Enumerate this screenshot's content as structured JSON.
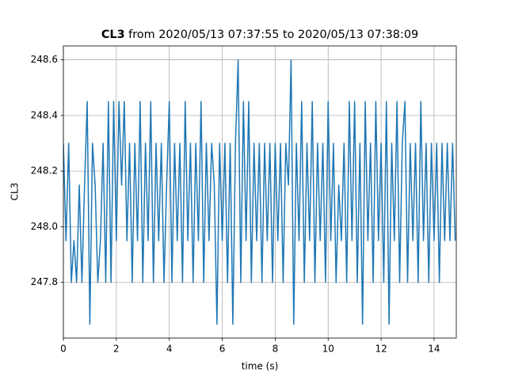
{
  "chart_data": {
    "type": "line",
    "title": [
      "CL3",
      "from 2020/05/13 07:37:55 to 2020/05/13 07:38:09"
    ],
    "xlabel": "time (s)",
    "ylabel": "CL3",
    "xlim": [
      0,
      14.84
    ],
    "ylim": [
      247.6,
      248.65
    ],
    "xticks": [
      0,
      2,
      4,
      6,
      8,
      10,
      12,
      14
    ],
    "yticks": [
      247.8,
      {
        "value": 248.0,
        "label": "248.0"
      },
      248.2,
      248.4,
      248.6
    ],
    "grid": true,
    "color": "#1f77b4",
    "x": [
      0,
      0.1,
      0.2,
      0.3,
      0.4,
      0.5,
      0.6,
      0.7,
      0.8,
      0.9,
      1,
      1.1,
      1.2,
      1.3,
      1.4,
      1.5,
      1.6,
      1.7,
      1.8,
      1.9,
      2,
      2.1,
      2.2,
      2.3,
      2.4,
      2.5,
      2.6,
      2.7,
      2.8,
      2.9,
      3,
      3.1,
      3.2,
      3.3,
      3.4,
      3.5,
      3.6,
      3.7,
      3.8,
      3.9,
      4,
      4.1,
      4.2,
      4.3,
      4.4,
      4.5,
      4.6,
      4.7,
      4.8,
      4.9,
      5,
      5.1,
      5.2,
      5.3,
      5.4,
      5.5,
      5.6,
      5.7,
      5.8,
      5.9,
      6,
      6.1,
      6.2,
      6.3,
      6.4,
      6.5,
      6.6,
      6.7,
      6.8,
      6.9,
      7,
      7.1,
      7.2,
      7.3,
      7.4,
      7.5,
      7.6,
      7.7,
      7.8,
      7.9,
      8,
      8.1,
      8.2,
      8.3,
      8.4,
      8.5,
      8.6,
      8.7,
      8.8,
      8.9,
      9,
      9.1,
      9.2,
      9.3,
      9.4,
      9.5,
      9.6,
      9.7,
      9.8,
      9.9,
      10,
      10.1,
      10.2,
      10.3,
      10.4,
      10.5,
      10.6,
      10.7,
      10.8,
      10.9,
      11,
      11.1,
      11.2,
      11.3,
      11.4,
      11.5,
      11.6,
      11.7,
      11.8,
      11.9,
      12,
      12.1,
      12.2,
      12.3,
      12.4,
      12.5,
      12.6,
      12.7,
      12.8,
      12.9,
      13,
      13.1,
      13.2,
      13.3,
      13.4,
      13.5,
      13.6,
      13.7,
      13.8,
      13.9,
      14,
      14.1,
      14.2,
      14.3,
      14.4,
      14.5,
      14.6,
      14.7,
      14.8
    ],
    "values": [
      248.3,
      247.95,
      248.3,
      247.8,
      247.95,
      247.8,
      248.15,
      247.8,
      248.15,
      248.45,
      247.65,
      248.3,
      248.15,
      247.8,
      247.95,
      248.3,
      247.8,
      248.45,
      247.8,
      248.45,
      247.95,
      248.45,
      248.15,
      248.45,
      247.95,
      248.3,
      247.8,
      248.3,
      247.95,
      248.45,
      247.8,
      248.3,
      247.95,
      248.45,
      247.8,
      248.3,
      247.95,
      248.3,
      247.8,
      248.15,
      248.45,
      247.8,
      248.3,
      247.95,
      248.3,
      247.8,
      248.45,
      247.95,
      248.3,
      247.8,
      248.3,
      247.95,
      248.45,
      247.8,
      248.3,
      247.95,
      248.3,
      248.15,
      247.65,
      248.3,
      247.95,
      248.3,
      247.8,
      248.3,
      247.65,
      248.3,
      248.6,
      247.8,
      248.45,
      247.95,
      248.45,
      247.8,
      248.3,
      247.95,
      248.3,
      247.8,
      248.3,
      247.95,
      248.3,
      247.8,
      248.3,
      247.95,
      248.3,
      247.8,
      248.3,
      248.15,
      248.6,
      247.65,
      248.3,
      247.95,
      248.45,
      247.8,
      248.3,
      247.95,
      248.45,
      247.8,
      248.3,
      247.95,
      248.3,
      247.8,
      248.45,
      247.95,
      248.3,
      247.8,
      248.15,
      247.95,
      248.3,
      247.8,
      248.45,
      247.95,
      248.45,
      247.8,
      248.3,
      247.65,
      248.45,
      247.95,
      248.3,
      247.8,
      248.45,
      247.95,
      248.3,
      247.8,
      248.45,
      247.65,
      248.3,
      247.95,
      248.45,
      247.8,
      248.3,
      248.45,
      247.8,
      248.3,
      247.95,
      248.3,
      247.8,
      248.45,
      247.95,
      248.3,
      247.8,
      248.3,
      247.95,
      248.3,
      247.8,
      248.3,
      247.95,
      248.3,
      247.95,
      248.3,
      247.95
    ]
  }
}
